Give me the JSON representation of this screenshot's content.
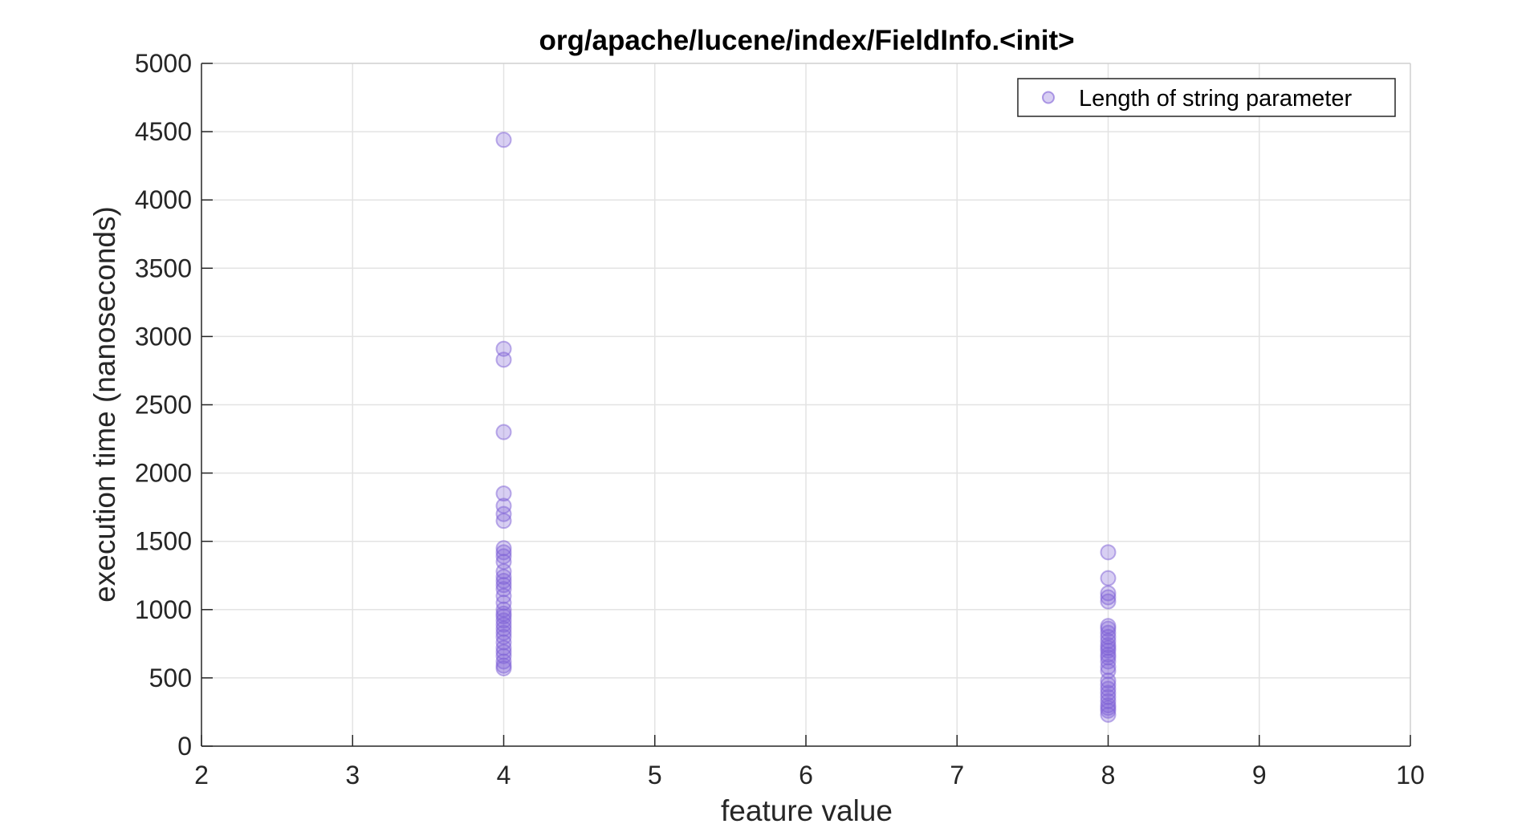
{
  "chart_data": {
    "type": "scatter",
    "title": "org/apache/lucene/index/FieldInfo.<init>",
    "xlabel": "feature value",
    "ylabel": "execution time (nanoseconds)",
    "xlim": [
      2,
      10
    ],
    "ylim": [
      0,
      5000
    ],
    "xticks": [
      2,
      3,
      4,
      5,
      6,
      7,
      8,
      9,
      10
    ],
    "yticks": [
      0,
      500,
      1000,
      1500,
      2000,
      2500,
      3000,
      3500,
      4000,
      4500,
      5000
    ],
    "grid": true,
    "legend_position": "top-right",
    "marker_color": "#7e5fd6",
    "series": [
      {
        "name": "Length of string parameter",
        "points": [
          {
            "x": 4,
            "y": 4440
          },
          {
            "x": 4,
            "y": 2910
          },
          {
            "x": 4,
            "y": 2830
          },
          {
            "x": 4,
            "y": 2300
          },
          {
            "x": 4,
            "y": 1850
          },
          {
            "x": 4,
            "y": 1760
          },
          {
            "x": 4,
            "y": 1700
          },
          {
            "x": 4,
            "y": 1650
          },
          {
            "x": 4,
            "y": 1450
          },
          {
            "x": 4,
            "y": 1420
          },
          {
            "x": 4,
            "y": 1390
          },
          {
            "x": 4,
            "y": 1350
          },
          {
            "x": 4,
            "y": 1280
          },
          {
            "x": 4,
            "y": 1240
          },
          {
            "x": 4,
            "y": 1210
          },
          {
            "x": 4,
            "y": 1180
          },
          {
            "x": 4,
            "y": 1150
          },
          {
            "x": 4,
            "y": 1100
          },
          {
            "x": 4,
            "y": 1050
          },
          {
            "x": 4,
            "y": 1000
          },
          {
            "x": 4,
            "y": 970
          },
          {
            "x": 4,
            "y": 950
          },
          {
            "x": 4,
            "y": 920
          },
          {
            "x": 4,
            "y": 890
          },
          {
            "x": 4,
            "y": 860
          },
          {
            "x": 4,
            "y": 830
          },
          {
            "x": 4,
            "y": 800
          },
          {
            "x": 4,
            "y": 760
          },
          {
            "x": 4,
            "y": 720
          },
          {
            "x": 4,
            "y": 690
          },
          {
            "x": 4,
            "y": 660
          },
          {
            "x": 4,
            "y": 620
          },
          {
            "x": 4,
            "y": 590
          },
          {
            "x": 4,
            "y": 570
          },
          {
            "x": 8,
            "y": 1420
          },
          {
            "x": 8,
            "y": 1230
          },
          {
            "x": 8,
            "y": 1120
          },
          {
            "x": 8,
            "y": 1090
          },
          {
            "x": 8,
            "y": 1060
          },
          {
            "x": 8,
            "y": 880
          },
          {
            "x": 8,
            "y": 860
          },
          {
            "x": 8,
            "y": 830
          },
          {
            "x": 8,
            "y": 800
          },
          {
            "x": 8,
            "y": 770
          },
          {
            "x": 8,
            "y": 740
          },
          {
            "x": 8,
            "y": 720
          },
          {
            "x": 8,
            "y": 700
          },
          {
            "x": 8,
            "y": 670
          },
          {
            "x": 8,
            "y": 650
          },
          {
            "x": 8,
            "y": 620
          },
          {
            "x": 8,
            "y": 580
          },
          {
            "x": 8,
            "y": 550
          },
          {
            "x": 8,
            "y": 480
          },
          {
            "x": 8,
            "y": 450
          },
          {
            "x": 8,
            "y": 420
          },
          {
            "x": 8,
            "y": 390
          },
          {
            "x": 8,
            "y": 360
          },
          {
            "x": 8,
            "y": 330
          },
          {
            "x": 8,
            "y": 300
          },
          {
            "x": 8,
            "y": 280
          },
          {
            "x": 8,
            "y": 260
          },
          {
            "x": 8,
            "y": 230
          }
        ]
      }
    ]
  }
}
